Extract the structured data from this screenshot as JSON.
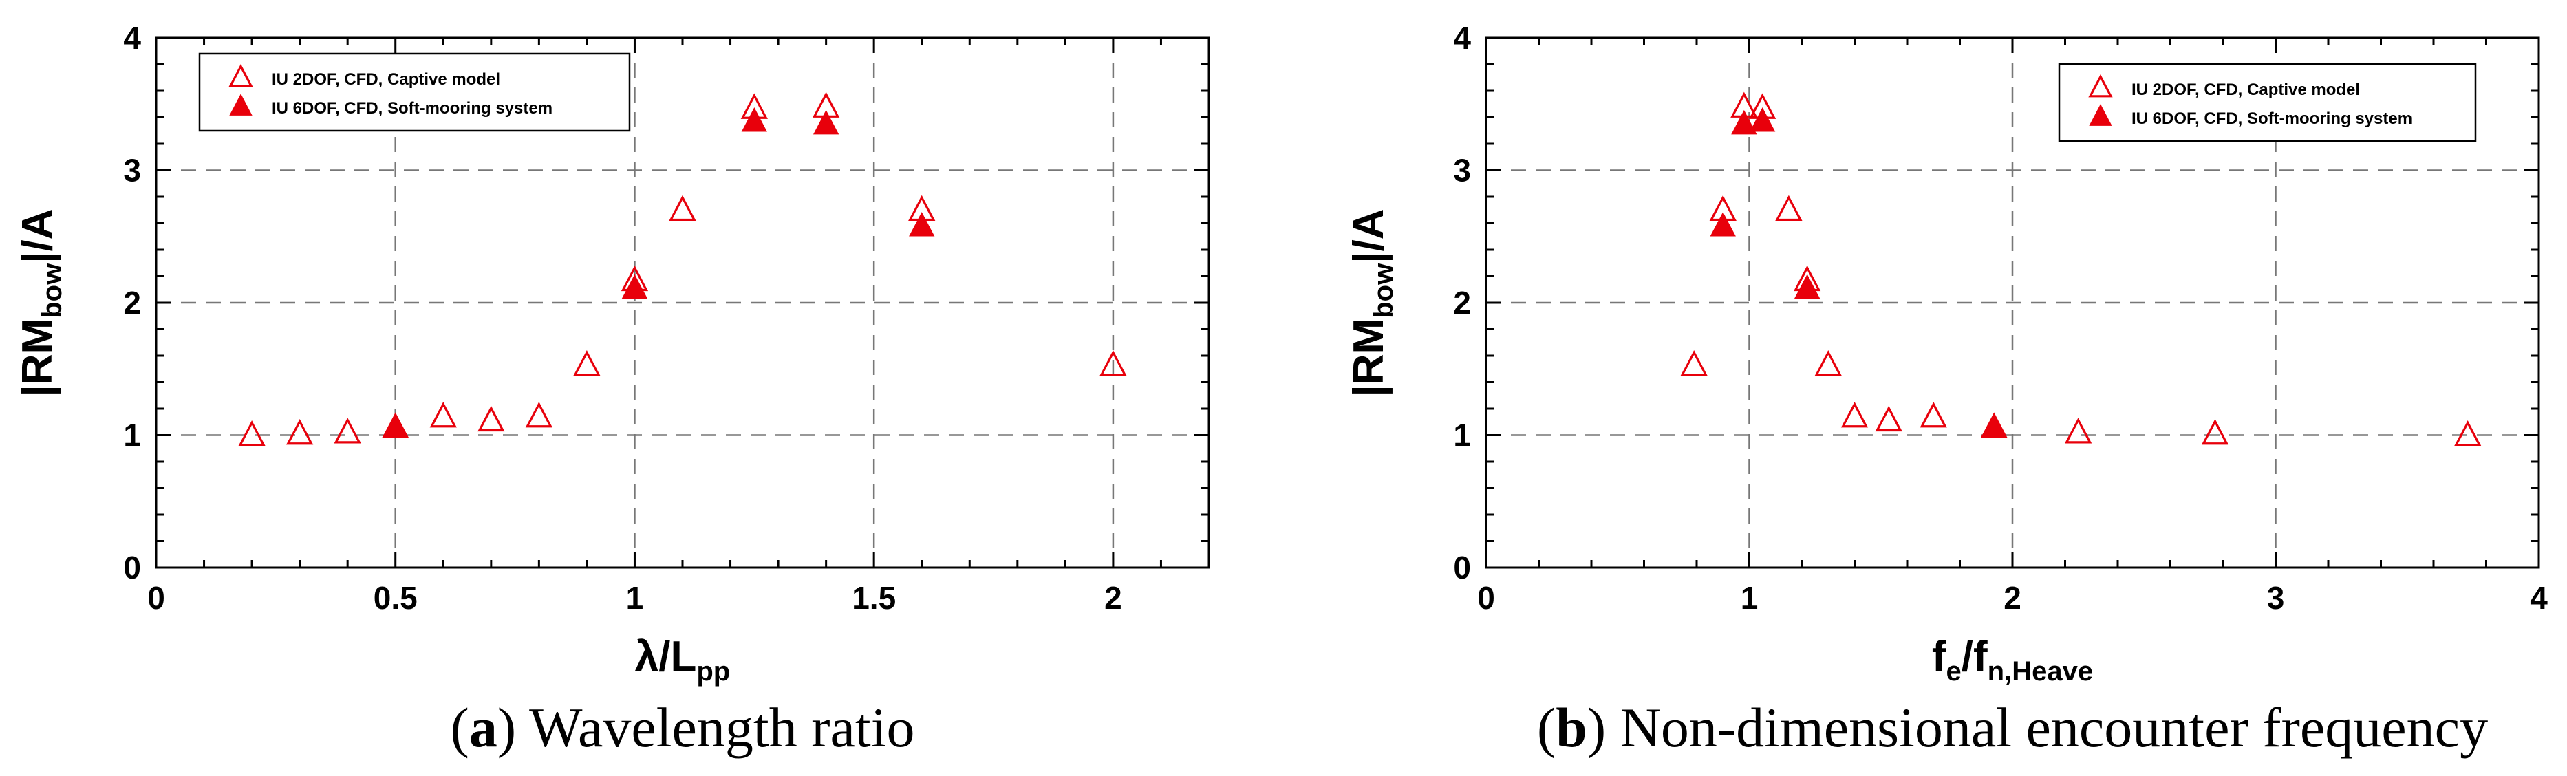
{
  "colors": {
    "marker": "#e8000b",
    "grid": "#777777",
    "axis": "#000000"
  },
  "chart_data": [
    {
      "type": "scatter",
      "panel": "a",
      "caption_letter": "a",
      "caption_text": " Wavelength ratio",
      "xlabel": "λ/L",
      "xlabel_sub": "pp",
      "ylabel_main": "|RM",
      "ylabel_sub": "bow",
      "ylabel_end": "|/A",
      "xlim": [
        0,
        2.2
      ],
      "ylim": [
        0,
        4
      ],
      "xticks": [
        0,
        0.5,
        1,
        1.5,
        2
      ],
      "xtick_labels": [
        "0",
        "0.5",
        "1",
        "1.5",
        "2"
      ],
      "yticks": [
        0,
        1,
        2,
        3,
        4
      ],
      "ytick_labels": [
        "0",
        "1",
        "2",
        "3",
        "4"
      ],
      "grid": true,
      "legend_position": "top-left",
      "series": [
        {
          "name": "IU 2DOF, CFD, Captive model",
          "marker": "open-triangle",
          "x": [
            0.2,
            0.3,
            0.4,
            0.5,
            0.6,
            0.7,
            0.8,
            0.9,
            1.0,
            1.1,
            1.25,
            1.4,
            1.6,
            2.0
          ],
          "y": [
            0.99,
            1.0,
            1.01,
            1.05,
            1.13,
            1.1,
            1.13,
            1.52,
            2.16,
            2.69,
            3.46,
            3.47,
            2.69,
            1.52
          ]
        },
        {
          "name": "IU 6DOF, CFD, Soft-mooring system",
          "marker": "filled-triangle",
          "x": [
            0.5,
            1.0,
            1.25,
            1.4,
            1.6
          ],
          "y": [
            1.05,
            2.1,
            3.36,
            3.34,
            2.57
          ]
        }
      ]
    },
    {
      "type": "scatter",
      "panel": "b",
      "caption_letter": "b",
      "caption_text": " Non-dimensional encounter frequency",
      "xlabel": "f",
      "xlabel_sub": "e",
      "xlabel_mid": "/f",
      "xlabel_sub2": "n,Heave",
      "ylabel_main": "|RM",
      "ylabel_sub": "bow",
      "ylabel_end": "|/A",
      "xlim": [
        0,
        4
      ],
      "ylim": [
        0,
        4
      ],
      "xticks": [
        0,
        1,
        2,
        3,
        4
      ],
      "xtick_labels": [
        "0",
        "1",
        "2",
        "3",
        "4"
      ],
      "yticks": [
        0,
        1,
        2,
        3,
        4
      ],
      "ytick_labels": [
        "0",
        "1",
        "2",
        "3",
        "4"
      ],
      "grid": true,
      "legend_position": "top-right",
      "series": [
        {
          "name": "IU 2DOF, CFD, Captive model",
          "marker": "open-triangle",
          "x": [
            3.73,
            2.77,
            2.25,
            1.93,
            1.7,
            1.53,
            1.4,
            1.3,
            1.22,
            1.15,
            1.05,
            0.98,
            0.9,
            0.79
          ],
          "y": [
            0.99,
            1.0,
            1.01,
            1.05,
            1.13,
            1.1,
            1.13,
            1.52,
            2.16,
            2.69,
            3.46,
            3.47,
            2.69,
            1.52
          ]
        },
        {
          "name": "IU 6DOF, CFD, Soft-mooring system",
          "marker": "filled-triangle",
          "x": [
            1.93,
            1.22,
            1.05,
            0.98,
            0.9
          ],
          "y": [
            1.05,
            2.1,
            3.36,
            3.34,
            2.57
          ]
        }
      ]
    }
  ]
}
